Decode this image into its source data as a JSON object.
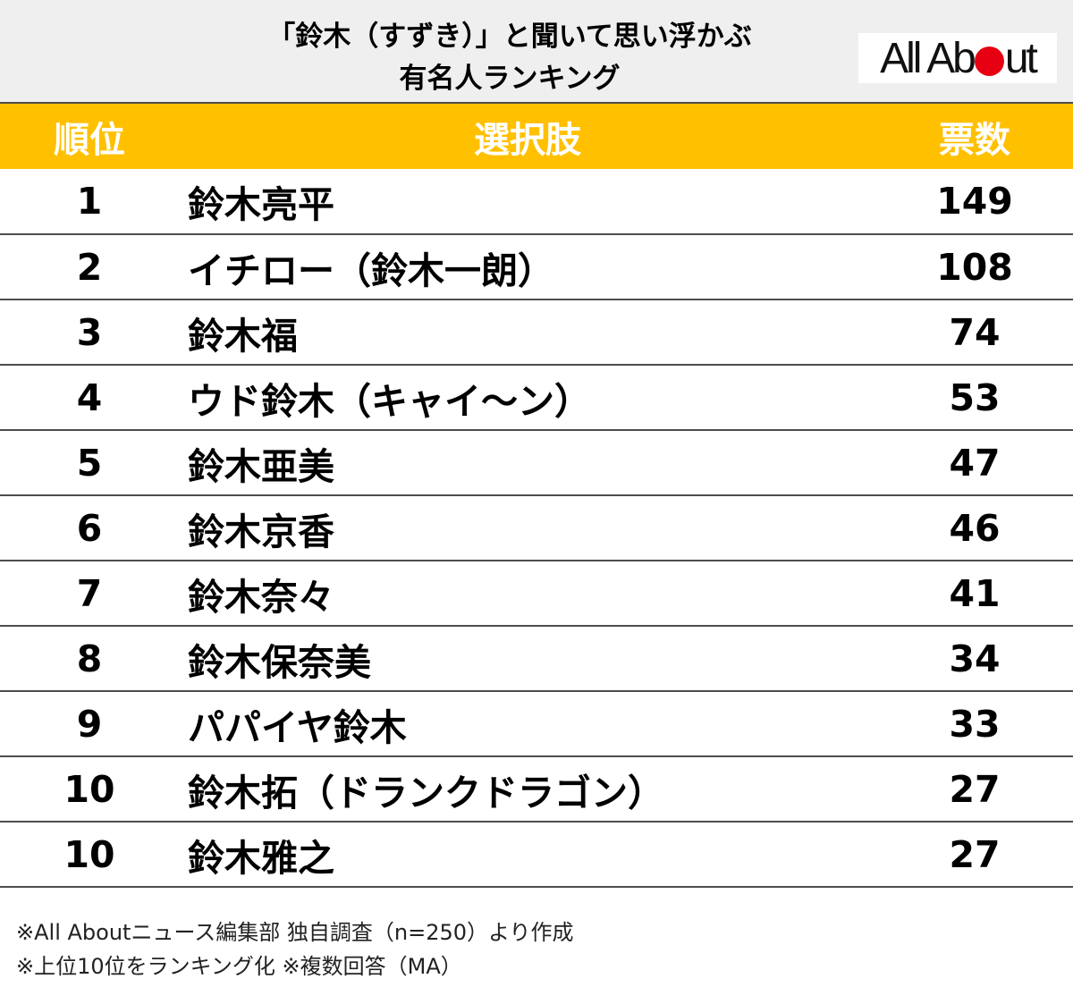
{
  "header": {
    "title_line1": "「鈴木（すずき）」と聞いて思い浮かぶ",
    "title_line2": "有名人ランキング",
    "logo_left": "All Ab",
    "logo_right": "ut",
    "logo_dot_color": "#e60012"
  },
  "table": {
    "columns": [
      "順位",
      "選択肢",
      "票数"
    ],
    "header_color": "#ffc000",
    "rows": [
      {
        "rank": "1",
        "name": "鈴木亮平",
        "votes": "149"
      },
      {
        "rank": "2",
        "name": "イチロー（鈴木一朗）",
        "votes": "108"
      },
      {
        "rank": "3",
        "name": "鈴木福",
        "votes": "74"
      },
      {
        "rank": "4",
        "name": "ウド鈴木（キャイ～ン）",
        "votes": "53"
      },
      {
        "rank": "5",
        "name": "鈴木亜美",
        "votes": "47"
      },
      {
        "rank": "6",
        "name": "鈴木京香",
        "votes": "46"
      },
      {
        "rank": "7",
        "name": "鈴木奈々",
        "votes": "41"
      },
      {
        "rank": "8",
        "name": "鈴木保奈美",
        "votes": "34"
      },
      {
        "rank": "9",
        "name": "パパイヤ鈴木",
        "votes": "33"
      },
      {
        "rank": "10",
        "name": "鈴木拓（ドランクドラゴン）",
        "votes": "27"
      },
      {
        "rank": "10",
        "name": "鈴木雅之",
        "votes": "27"
      }
    ]
  },
  "chart_data": {
    "type": "table",
    "title": "「鈴木（すずき）」と聞いて思い浮かぶ有名人ランキング",
    "columns": [
      "順位",
      "選択肢",
      "票数"
    ],
    "categories": [
      "鈴木亮平",
      "イチロー（鈴木一朗）",
      "鈴木福",
      "ウド鈴木（キャイ～ン）",
      "鈴木亜美",
      "鈴木京香",
      "鈴木奈々",
      "鈴木保奈美",
      "パパイヤ鈴木",
      "鈴木拓（ドランクドラゴン）",
      "鈴木雅之"
    ],
    "ranks": [
      1,
      2,
      3,
      4,
      5,
      6,
      7,
      8,
      9,
      10,
      10
    ],
    "values": [
      149,
      108,
      74,
      53,
      47,
      46,
      41,
      34,
      33,
      27,
      27
    ]
  },
  "notes": {
    "line1": "※All Aboutニュース編集部 独自調査（n=250）より作成",
    "line2": "※上位10位をランキング化 ※複数回答（MA）"
  }
}
